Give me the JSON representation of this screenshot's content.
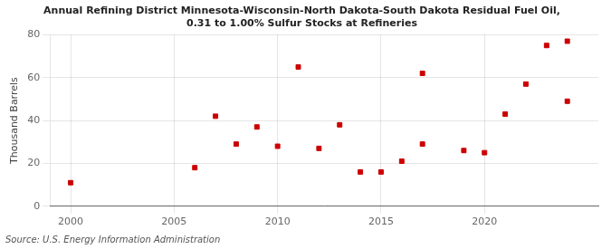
{
  "chart_data": {
    "type": "scatter",
    "title": "Annual Refining District Minnesota-Wisconsin-North Dakota-South Dakota Residual Fuel Oil,\n0.31 to 1.00% Sulfur Stocks at Refineries",
    "ylabel": "Thousand Barrels",
    "annotations": [
      "Source: U.S. Energy Information Administration"
    ],
    "series": [
      {
        "color": "#cc0000",
        "marker": "square",
        "x": [
          2000,
          2006,
          2007,
          2008,
          2009,
          2010,
          2011,
          2012,
          2013,
          2015,
          2016,
          2017,
          2019,
          2020,
          2021,
          2022,
          2023,
          2024
        ],
        "values": [
          11,
          18,
          42,
          29,
          37,
          28,
          65,
          27,
          38,
          16,
          21,
          29,
          26,
          25,
          43,
          57,
          75,
          77
        ]
      },
      {
        "color": "#cc0000",
        "marker": "square",
        "x": [
          2014,
          2017,
          2024
        ],
        "values": [
          16,
          62,
          49
        ]
      }
    ],
    "xlim": [
      1999,
      2025.5
    ],
    "xticks": [
      2000,
      2005,
      2010,
      2015,
      2020
    ],
    "ylim": [
      0,
      80
    ],
    "yticks": [
      0,
      20,
      40,
      60,
      80
    ],
    "grid": true
  }
}
